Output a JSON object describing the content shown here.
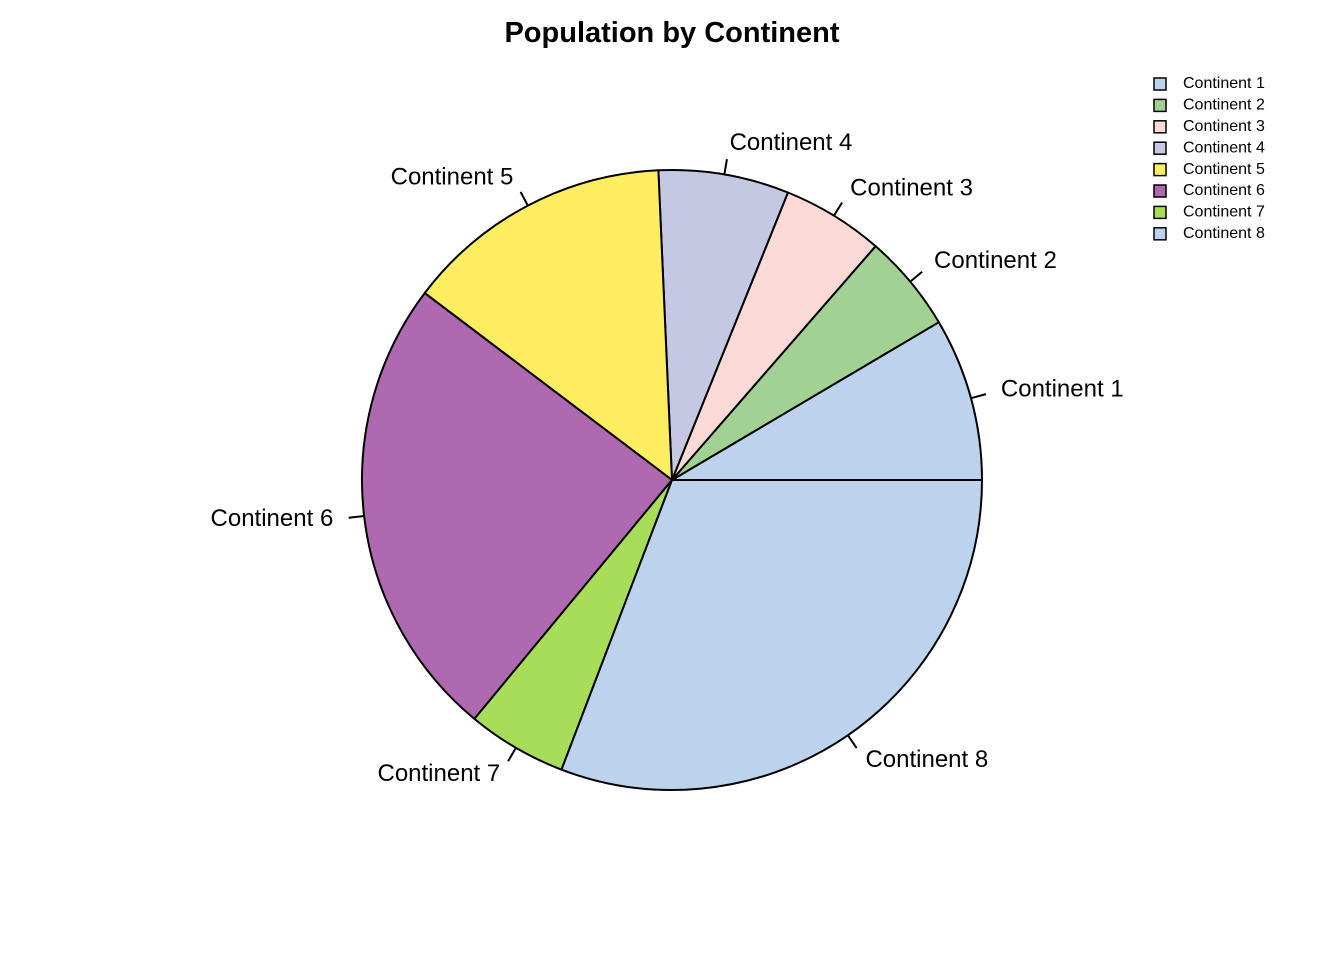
{
  "chart_data": {
    "type": "pie",
    "title": "Population by Continent",
    "categories": [
      "Continent 1",
      "Continent 2",
      "Continent 3",
      "Continent 4",
      "Continent 5",
      "Continent 6",
      "Continent 7",
      "Continent 8"
    ],
    "values": [
      8.5,
      5.1,
      5.3,
      6.8,
      14.0,
      24.3,
      5.2,
      30.8
    ],
    "colors": [
      "#BDD2EC",
      "#A1D193",
      "#FAD9D7",
      "#C5C8E2",
      "#FEEC61",
      "#AE69B1",
      "#A7DD58",
      "#BDD2EC"
    ],
    "legend_position": "top-right",
    "legend": [
      "Continent 1",
      "Continent 2",
      "Continent 3",
      "Continent 4",
      "Continent 5",
      "Continent 6",
      "Continent 7",
      "Continent 8"
    ]
  }
}
